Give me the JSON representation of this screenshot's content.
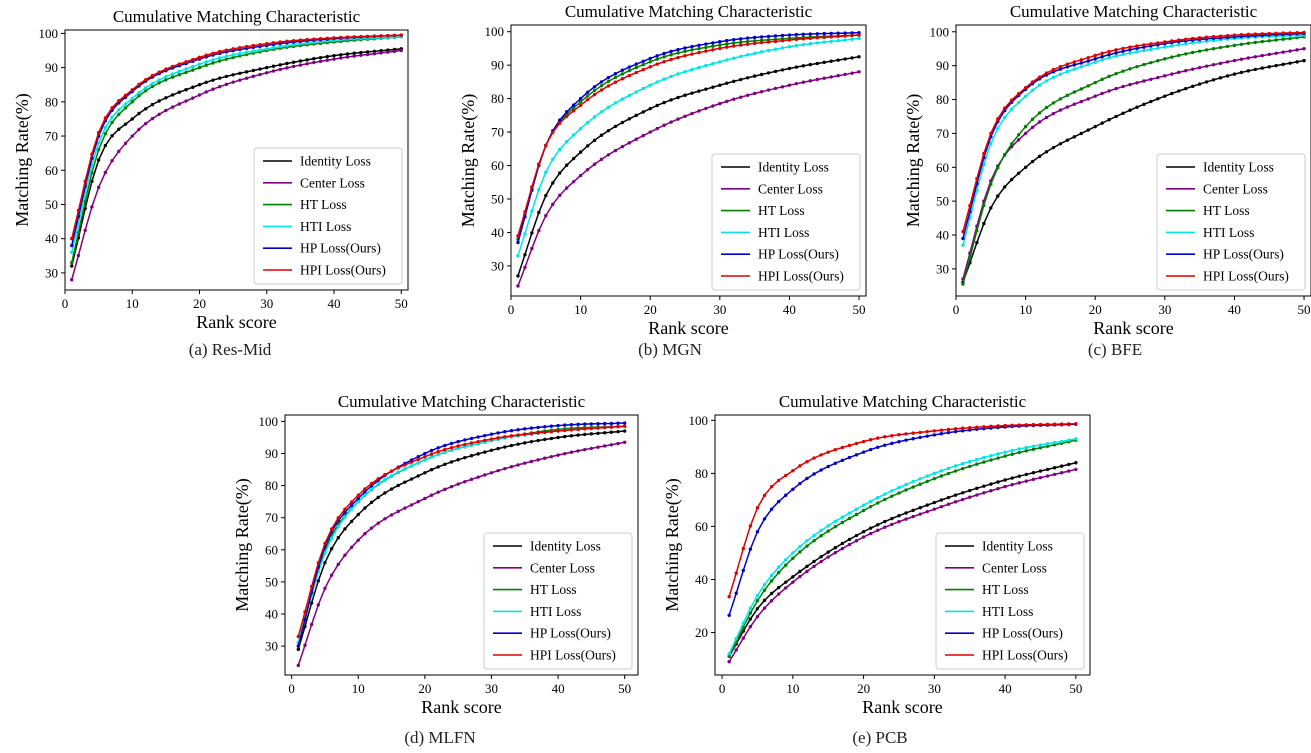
{
  "chart_data": [
    {
      "id": "a",
      "type": "line",
      "title": "Cumulative Matching Characteristic",
      "xlabel": "Rank score",
      "ylabel": "Matching Rate(%)",
      "caption": "(a)  Res-Mid",
      "xlim": [
        0,
        51
      ],
      "ylim": [
        25,
        101
      ],
      "xticks": [
        0,
        10,
        20,
        30,
        40,
        50
      ],
      "yticks": [
        30,
        40,
        50,
        60,
        70,
        80,
        90,
        100
      ],
      "legend_position": "lower-right",
      "series": [
        {
          "name": "Identity Loss",
          "color": "#000000",
          "values_at": {
            "1": 32,
            "5": 63,
            "10": 75,
            "20": 85,
            "30": 90,
            "40": 93.5,
            "50": 95.5
          }
        },
        {
          "name": "Center Loss",
          "color": "#800080",
          "values_at": {
            "1": 28,
            "5": 55,
            "10": 70,
            "20": 82,
            "30": 88.5,
            "40": 92.5,
            "50": 95
          }
        },
        {
          "name": "HT Loss",
          "color": "#008000",
          "values_at": {
            "1": 33,
            "5": 66,
            "10": 80,
            "20": 90,
            "30": 95,
            "40": 97.5,
            "50": 99
          }
        },
        {
          "name": "HTI Loss",
          "color": "#00e5e5",
          "values_at": {
            "1": 36,
            "5": 68,
            "10": 81,
            "20": 91,
            "30": 95.5,
            "40": 98,
            "50": 99
          }
        },
        {
          "name": "HP Loss(Ours)",
          "color": "#0000cc",
          "values_at": {
            "1": 38,
            "5": 70,
            "10": 83,
            "20": 92.5,
            "30": 96.5,
            "40": 98.5,
            "50": 99.5
          }
        },
        {
          "name": "HPI Loss(Ours)",
          "color": "#e00000",
          "values_at": {
            "1": 40,
            "5": 71,
            "10": 83.5,
            "20": 93,
            "30": 97,
            "40": 98.7,
            "50": 99.5
          }
        }
      ]
    },
    {
      "id": "b",
      "type": "line",
      "title": "Cumulative Matching Characteristic",
      "xlabel": "Rank score",
      "ylabel": "Matching Rate(%)",
      "caption": "(b)  MGN",
      "xlim": [
        0,
        51
      ],
      "ylim": [
        21,
        102
      ],
      "xticks": [
        0,
        10,
        20,
        30,
        40,
        50
      ],
      "yticks": [
        30,
        40,
        50,
        60,
        70,
        80,
        90,
        100
      ],
      "legend_position": "lower-right",
      "series": [
        {
          "name": "Identity Loss",
          "color": "#000000",
          "values_at": {
            "1": 27,
            "5": 51,
            "10": 64,
            "20": 77,
            "30": 84,
            "40": 89,
            "50": 92.5
          }
        },
        {
          "name": "Center Loss",
          "color": "#800080",
          "values_at": {
            "1": 24,
            "5": 45,
            "10": 57,
            "20": 70,
            "30": 78.5,
            "40": 84,
            "50": 88
          }
        },
        {
          "name": "HT Loss",
          "color": "#008000",
          "values_at": {
            "1": 38,
            "5": 66,
            "10": 79,
            "20": 91,
            "30": 96,
            "40": 98,
            "50": 99
          }
        },
        {
          "name": "HTI Loss",
          "color": "#00e5e5",
          "values_at": {
            "1": 33,
            "5": 58,
            "10": 71,
            "20": 84,
            "30": 91,
            "40": 95.5,
            "50": 98
          }
        },
        {
          "name": "HP Loss(Ours)",
          "color": "#0000cc",
          "values_at": {
            "1": 37,
            "5": 66,
            "10": 80,
            "20": 92,
            "30": 97,
            "40": 99,
            "50": 99.7
          }
        },
        {
          "name": "HPI Loss(Ours)",
          "color": "#e00000",
          "values_at": {
            "1": 39,
            "5": 66,
            "10": 78,
            "20": 89.5,
            "30": 95,
            "40": 97.5,
            "50": 99
          }
        }
      ]
    },
    {
      "id": "c",
      "type": "line",
      "title": "Cumulative Matching Characteristic",
      "xlabel": "Rank score",
      "ylabel": "Matching Rate(%)",
      "caption": "(c)  BFE",
      "xlim": [
        0,
        51
      ],
      "ylim": [
        22,
        102
      ],
      "xticks": [
        0,
        10,
        20,
        30,
        40,
        50
      ],
      "yticks": [
        30,
        40,
        50,
        60,
        70,
        80,
        90,
        100
      ],
      "legend_position": "lower-right",
      "series": [
        {
          "name": "Identity Loss",
          "color": "#000000",
          "values_at": {
            "1": 26,
            "5": 48,
            "10": 60,
            "20": 72,
            "30": 81,
            "40": 87.5,
            "50": 91.5
          }
        },
        {
          "name": "Center Loss",
          "color": "#800080",
          "values_at": {
            "1": 27,
            "5": 56,
            "10": 70,
            "20": 81,
            "30": 87,
            "40": 91.5,
            "50": 95
          }
        },
        {
          "name": "HT Loss",
          "color": "#008000",
          "values_at": {
            "1": 25.5,
            "5": 55,
            "10": 72,
            "20": 85,
            "30": 92,
            "40": 96,
            "50": 98.5
          }
        },
        {
          "name": "HTI Loss",
          "color": "#00e5e5",
          "values_at": {
            "1": 37,
            "5": 67,
            "10": 81,
            "20": 91,
            "30": 95.5,
            "40": 98,
            "50": 99
          }
        },
        {
          "name": "HP Loss(Ours)",
          "color": "#0000cc",
          "values_at": {
            "1": 39,
            "5": 69,
            "10": 83,
            "20": 92,
            "30": 96.5,
            "40": 98.5,
            "50": 99.5
          }
        },
        {
          "name": "HPI Loss(Ours)",
          "color": "#e00000",
          "values_at": {
            "1": 41,
            "5": 70,
            "10": 83.5,
            "20": 93,
            "30": 97,
            "40": 99,
            "50": 99.8
          }
        }
      ]
    },
    {
      "id": "d",
      "type": "line",
      "title": "Cumulative Matching Characteristic",
      "xlabel": "Rank score",
      "ylabel": "Matching Rate(%)",
      "caption": "(d)  MLFN",
      "xlim": [
        -1,
        52
      ],
      "ylim": [
        21,
        102
      ],
      "xticks": [
        0,
        10,
        20,
        30,
        40,
        50
      ],
      "yticks": [
        30,
        40,
        50,
        60,
        70,
        80,
        90,
        100
      ],
      "legend_position": "lower-right",
      "series": [
        {
          "name": "Identity Loss",
          "color": "#000000",
          "values_at": {
            "1": 29,
            "5": 56,
            "10": 71,
            "20": 84,
            "30": 91,
            "40": 95,
            "50": 97
          }
        },
        {
          "name": "Center Loss",
          "color": "#800080",
          "values_at": {
            "1": 24,
            "5": 48,
            "10": 63,
            "20": 76,
            "30": 84,
            "40": 89.5,
            "50": 93.5
          }
        },
        {
          "name": "HT Loss",
          "color": "#008000",
          "values_at": {
            "1": 31,
            "5": 60,
            "10": 75,
            "20": 88,
            "30": 94,
            "40": 97.5,
            "50": 98.5
          }
        },
        {
          "name": "HTI Loss",
          "color": "#00e5e5",
          "values_at": {
            "1": 31,
            "5": 59,
            "10": 75,
            "20": 88,
            "30": 94,
            "40": 97,
            "50": 98.5
          }
        },
        {
          "name": "HP Loss(Ours)",
          "color": "#0000cc",
          "values_at": {
            "1": 30,
            "5": 61,
            "10": 76,
            "20": 90,
            "30": 96,
            "40": 98.7,
            "50": 99.5
          }
        },
        {
          "name": "HPI Loss(Ours)",
          "color": "#e00000",
          "values_at": {
            "1": 33,
            "5": 62,
            "10": 77,
            "20": 89,
            "30": 94.5,
            "40": 97,
            "50": 98.5
          }
        }
      ]
    },
    {
      "id": "e",
      "type": "line",
      "title": "Cumulative Matching Characteristic",
      "xlabel": "Rank score",
      "ylabel": "Matching Rate(%)",
      "caption": "(e)  PCB",
      "xlim": [
        -1,
        52
      ],
      "ylim": [
        4,
        102
      ],
      "xticks": [
        0,
        10,
        20,
        30,
        40,
        50
      ],
      "yticks": [
        20,
        40,
        60,
        80,
        100
      ],
      "legend_position": "lower-right",
      "series": [
        {
          "name": "Identity Loss",
          "color": "#000000",
          "values_at": {
            "1": 11,
            "5": 29,
            "10": 41,
            "20": 58,
            "30": 69,
            "40": 77.5,
            "50": 84
          }
        },
        {
          "name": "Center Loss",
          "color": "#800080",
          "values_at": {
            "1": 9,
            "5": 26,
            "10": 39,
            "20": 56,
            "30": 66.5,
            "40": 75,
            "50": 81.5
          }
        },
        {
          "name": "HT Loss",
          "color": "#008000",
          "values_at": {
            "1": 11,
            "5": 32,
            "10": 48,
            "20": 66,
            "30": 78,
            "40": 86.5,
            "50": 92.5
          }
        },
        {
          "name": "HTI Loss",
          "color": "#00e5e5",
          "values_at": {
            "1": 12,
            "5": 34,
            "10": 50,
            "20": 68,
            "30": 80,
            "40": 88,
            "50": 93
          }
        },
        {
          "name": "HP Loss(Ours)",
          "color": "#0000cc",
          "values_at": {
            "1": 26.5,
            "5": 58,
            "10": 74,
            "20": 88,
            "30": 94.5,
            "40": 97.5,
            "50": 98.5
          }
        },
        {
          "name": "HPI Loss(Ours)",
          "color": "#e00000",
          "values_at": {
            "1": 33.5,
            "5": 67,
            "10": 81,
            "20": 92,
            "30": 96,
            "40": 98,
            "50": 98.7
          }
        }
      ]
    }
  ]
}
